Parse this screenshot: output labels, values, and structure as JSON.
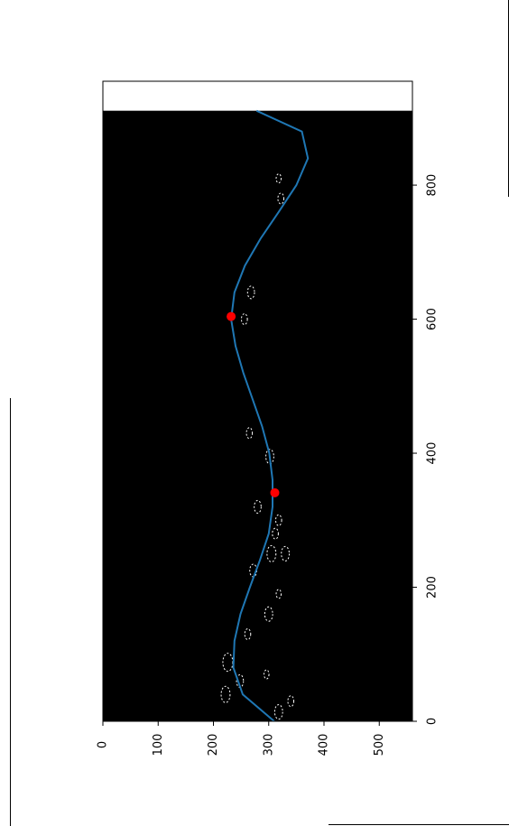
{
  "chart_data": {
    "type": "line",
    "title": "",
    "xlabel": "",
    "ylabel": "",
    "xlim": [
      0,
      911
    ],
    "ylim": [
      0,
      560
    ],
    "x_ticks": [
      0,
      200,
      400,
      600,
      800
    ],
    "y_ticks": [
      0,
      100,
      200,
      300,
      400,
      500
    ],
    "background": {
      "kind": "edge-detection image",
      "image_color": "#000000",
      "edge_color": "#ffffff",
      "white_band_x": [
        911,
        955
      ]
    },
    "series": [
      {
        "type": "line",
        "color": "#1f77b4",
        "x": [
          0,
          40,
          80,
          120,
          160,
          200,
          240,
          280,
          320,
          360,
          400,
          440,
          480,
          520,
          560,
          600,
          640,
          680,
          720,
          760,
          800,
          840,
          880,
          911
        ],
        "y": [
          310,
          253,
          236,
          238,
          249,
          266,
          284,
          300,
          307,
          307,
          301,
          288,
          271,
          254,
          240,
          232,
          238,
          257,
          285,
          318,
          350,
          371,
          360,
          278
        ]
      },
      {
        "type": "scatter",
        "color": "#ff0000",
        "x": [
          341,
          604
        ],
        "y": [
          311,
          232
        ]
      }
    ]
  },
  "colors": {
    "axes": "#000000",
    "curve": "#1f77b4",
    "markers": "#ff0000",
    "edges": "#ffffff"
  }
}
